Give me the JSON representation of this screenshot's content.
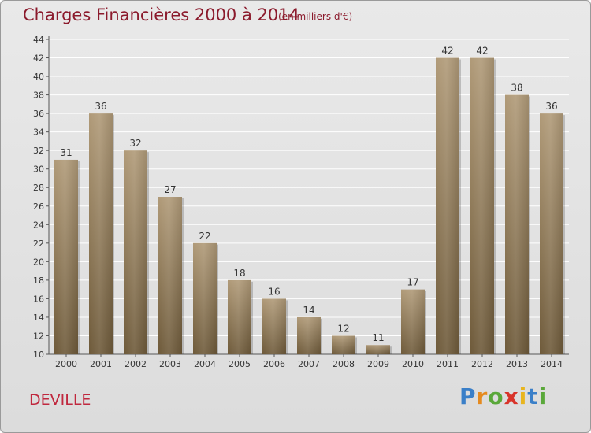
{
  "header": {
    "title": "Charges Financières 2000 à 2014",
    "unit": "(en milliers d'€)"
  },
  "footer": {
    "commune": "DEVILLE",
    "logo_text": "Proxiti"
  },
  "colors": {
    "title": "#8b1a2c",
    "commune": "#c0283e",
    "bar_top": "#b09a78",
    "bar_bottom": "#6e5a3a",
    "grid": "#ffffff"
  },
  "chart_data": {
    "type": "bar",
    "categories": [
      "2000",
      "2001",
      "2002",
      "2003",
      "2004",
      "2005",
      "2006",
      "2007",
      "2008",
      "2009",
      "2010",
      "2011",
      "2012",
      "2013",
      "2014"
    ],
    "values": [
      31,
      36,
      32,
      27,
      22,
      18,
      16,
      14,
      12,
      11,
      17,
      42,
      42,
      38,
      36
    ],
    "ylim": [
      10,
      44
    ],
    "yticks": [
      10,
      12,
      14,
      16,
      18,
      20,
      22,
      24,
      26,
      28,
      30,
      32,
      34,
      36,
      38,
      40,
      42,
      44
    ],
    "grid": true,
    "legend": "none"
  }
}
